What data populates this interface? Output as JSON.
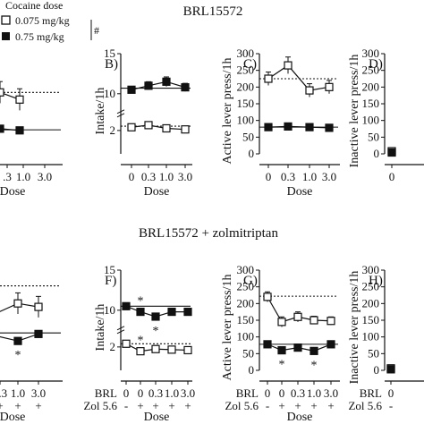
{
  "figure": {
    "top_title": "BRL15572",
    "bottom_title": "BRL15572 + zolmitriptan",
    "legend": {
      "title": "Cocaine dose",
      "items": [
        {
          "label": "0.075 mg/kg",
          "marker": "open-square"
        },
        {
          "label": "0.75 mg/kg",
          "marker": "filled-square"
        }
      ],
      "significance_mark": "#"
    },
    "colors": {
      "ink": "#111111",
      "open_fill": "#ffffff",
      "filled": "#111111"
    }
  },
  "chart_data": [
    {
      "type": "line",
      "panel": "A",
      "label": "",
      "partial": true,
      "xlabel": "Dose",
      "x_ticks": [
        ".3",
        "1.0",
        "3.0"
      ],
      "series": [
        {
          "name": "0.075 mg/kg",
          "marker": "open-square",
          "x": [
            0,
            1,
            2,
            3
          ],
          "y": [
            14,
            12,
            12,
            11
          ],
          "err": [
            1.2,
            1.5,
            1.5,
            1.5
          ]
        },
        {
          "name": "0.75 mg/kg",
          "marker": "filled-square",
          "x": [
            0,
            1,
            2,
            3
          ],
          "y": [
            3.6,
            3.4,
            3.6,
            3.3
          ],
          "err": [
            0.3,
            0.3,
            0.3,
            0.3
          ]
        }
      ],
      "reference_lines": [
        {
          "style": "dotted",
          "y": 12
        },
        {
          "style": "solid",
          "y": 3.4
        }
      ]
    },
    {
      "type": "line",
      "panel": "B",
      "label": "B)",
      "ylabel": "Intake/1h",
      "xlabel": "Dose",
      "y_ticks": [
        "2",
        "10",
        "15"
      ],
      "x_ticks": [
        "0",
        "0.3",
        "1.0",
        "3.0"
      ],
      "series": [
        {
          "name": "0.075 mg/kg",
          "marker": "open-square",
          "x": [
            0,
            1,
            2,
            3
          ],
          "y": [
            2.3,
            2.5,
            2.2,
            2.1
          ],
          "err": [
            0.2,
            0.25,
            0.2,
            0.2
          ]
        },
        {
          "name": "0.75 mg/kg",
          "marker": "filled-square",
          "x": [
            0,
            1,
            2,
            3
          ],
          "y": [
            10.5,
            11,
            11.5,
            10.8
          ],
          "err": [
            0.4,
            0.5,
            0.6,
            0.5
          ]
        }
      ],
      "reference_lines": [
        {
          "style": "dotted",
          "y": 2.4
        },
        {
          "style": "solid",
          "y": 10.7
        }
      ]
    },
    {
      "type": "line",
      "panel": "C",
      "label": "C)",
      "ylabel": "Active lever press/1h",
      "xlabel": "Dose",
      "y_ticks": [
        "0",
        "50",
        "100",
        "150",
        "200",
        "250",
        "300"
      ],
      "x_ticks": [
        "0",
        "0.3",
        "1.0",
        "3.0"
      ],
      "series": [
        {
          "name": "0.075 mg/kg",
          "marker": "open-square",
          "x": [
            0,
            1,
            2,
            3
          ],
          "y": [
            225,
            265,
            190,
            200
          ],
          "err": [
            20,
            25,
            20,
            20
          ]
        },
        {
          "name": "0.75 mg/kg",
          "marker": "filled-square",
          "x": [
            0,
            1,
            2,
            3
          ],
          "y": [
            80,
            82,
            80,
            78
          ],
          "err": [
            5,
            5,
            5,
            5
          ]
        }
      ],
      "reference_lines": [
        {
          "style": "dotted",
          "y": 225
        },
        {
          "style": "solid",
          "y": 80
        }
      ]
    },
    {
      "type": "line",
      "panel": "D",
      "label": "D)",
      "ylabel": "Inactive lever press/1h",
      "partial": true,
      "y_ticks": [
        "0",
        "50",
        "100",
        "150",
        "200",
        "250",
        "300"
      ],
      "x_ticks": [
        "0"
      ],
      "series": [
        {
          "name": "0.075 mg/kg",
          "marker": "open-square",
          "x": [
            0
          ],
          "y": [
            8
          ],
          "err": [
            3
          ]
        },
        {
          "name": "0.75 mg/kg",
          "marker": "filled-square",
          "x": [
            0
          ],
          "y": [
            4
          ],
          "err": [
            2
          ]
        }
      ]
    },
    {
      "type": "line",
      "panel": "E",
      "label": "",
      "partial": true,
      "xlabel": "Dose",
      "x_ticks": [
        "0.3",
        "1.0",
        "3.0"
      ],
      "brl_row": [
        "+",
        "+",
        "+"
      ],
      "zol_row": [
        "+",
        "+",
        "+"
      ],
      "series": [
        {
          "name": "0.075 mg/kg",
          "marker": "open-square",
          "x": [
            0,
            1,
            2,
            3
          ],
          "y": [
            11.5,
            13,
            12.5,
            12
          ],
          "err": [
            1.5,
            1.5,
            1.5,
            1.5
          ]
        },
        {
          "name": "0.75 mg/kg",
          "marker": "filled-square",
          "x": [
            0,
            1,
            2,
            3
          ],
          "y": [
            5.5,
            4.5,
            5.8,
            6
          ],
          "err": [
            0.4,
            0.5,
            0.4,
            0.4
          ]
        }
      ],
      "reference_lines": [
        {
          "style": "dotted",
          "y": 15.5
        },
        {
          "style": "solid",
          "y": 6
        }
      ],
      "annotations": [
        {
          "text": "*",
          "series": 1,
          "x": 1
        }
      ]
    },
    {
      "type": "line",
      "panel": "F",
      "label": "F)",
      "ylabel": "Intake/1h",
      "xlabel": "Dose",
      "y_ticks": [
        "2",
        "10",
        "15"
      ],
      "x_ticks": [
        "0",
        "0",
        "0.3",
        "1.0",
        "3.0"
      ],
      "brl_label": "BRL",
      "zol_label": "Zol 5.6",
      "brl_row": [
        "-",
        "+",
        "+",
        "+",
        "+"
      ],
      "zol_row": [
        "-",
        "+",
        "+",
        "+",
        "+"
      ],
      "series": [
        {
          "name": "0.075 mg/kg",
          "marker": "open-square",
          "x": [
            0,
            1,
            2,
            3,
            4
          ],
          "y": [
            2.3,
            1.6,
            1.8,
            1.75,
            1.7
          ],
          "err": [
            0.2,
            0.15,
            0.15,
            0.15,
            0.15
          ]
        },
        {
          "name": "0.75 mg/kg",
          "marker": "filled-square",
          "x": [
            0,
            1,
            2,
            3,
            4
          ],
          "y": [
            10.5,
            9.8,
            9.2,
            9.8,
            9.8
          ],
          "err": [
            0.3,
            0.3,
            0.3,
            0.3,
            0.3
          ]
        }
      ],
      "reference_lines": [
        {
          "style": "dotted",
          "y": 2.3
        },
        {
          "style": "solid",
          "y": 10.5
        }
      ],
      "annotations": [
        {
          "text": "*",
          "series": 0,
          "x": 1
        },
        {
          "text": "*",
          "series": 1,
          "x": 1
        },
        {
          "text": "*",
          "series": 1,
          "x": 2
        }
      ]
    },
    {
      "type": "line",
      "panel": "G",
      "label": "G)",
      "ylabel": "Active lever press/1h",
      "xlabel": "Dose",
      "y_ticks": [
        "0",
        "50",
        "100",
        "150",
        "200",
        "250",
        "300"
      ],
      "x_ticks": [
        "0",
        "0",
        "0.3",
        "1.0",
        "3.0"
      ],
      "brl_label": "BRL",
      "zol_label": "Zol 5.6",
      "brl_row": [
        "-",
        "+",
        "+",
        "+",
        "+"
      ],
      "zol_row": [
        "-",
        "+",
        "+",
        "+",
        "+"
      ],
      "series": [
        {
          "name": "0.075 mg/kg",
          "marker": "open-square",
          "x": [
            0,
            1,
            2,
            3,
            4
          ],
          "y": [
            220,
            145,
            160,
            150,
            148
          ],
          "err": [
            15,
            15,
            15,
            12,
            12
          ]
        },
        {
          "name": "0.75 mg/kg",
          "marker": "filled-square",
          "x": [
            0,
            1,
            2,
            3,
            4
          ],
          "y": [
            78,
            60,
            68,
            58,
            78
          ],
          "err": [
            4,
            4,
            4,
            4,
            4
          ]
        }
      ],
      "reference_lines": [
        {
          "style": "dotted",
          "y": 222
        },
        {
          "style": "solid",
          "y": 78
        }
      ],
      "annotations": [
        {
          "text": "*",
          "series": 1,
          "x": 1
        },
        {
          "text": "*",
          "series": 1,
          "x": 3
        }
      ]
    },
    {
      "type": "line",
      "panel": "H",
      "label": "H)",
      "ylabel": "Inactive lever press/1h",
      "partial": true,
      "y_ticks": [
        "0",
        "50",
        "100",
        "150",
        "200",
        "250",
        "300"
      ],
      "x_ticks": [
        "0"
      ],
      "brl_label": "BRL",
      "zol_label": "Zol 5.6",
      "brl_row": [
        "-"
      ],
      "zol_row": [
        "-"
      ],
      "series": [
        {
          "name": "0.075 mg/kg",
          "marker": "open-square",
          "x": [
            0
          ],
          "y": [
            6
          ],
          "err": [
            2
          ]
        },
        {
          "name": "0.75 mg/kg",
          "marker": "filled-square",
          "x": [
            0
          ],
          "y": [
            3
          ],
          "err": [
            1
          ]
        }
      ]
    }
  ]
}
